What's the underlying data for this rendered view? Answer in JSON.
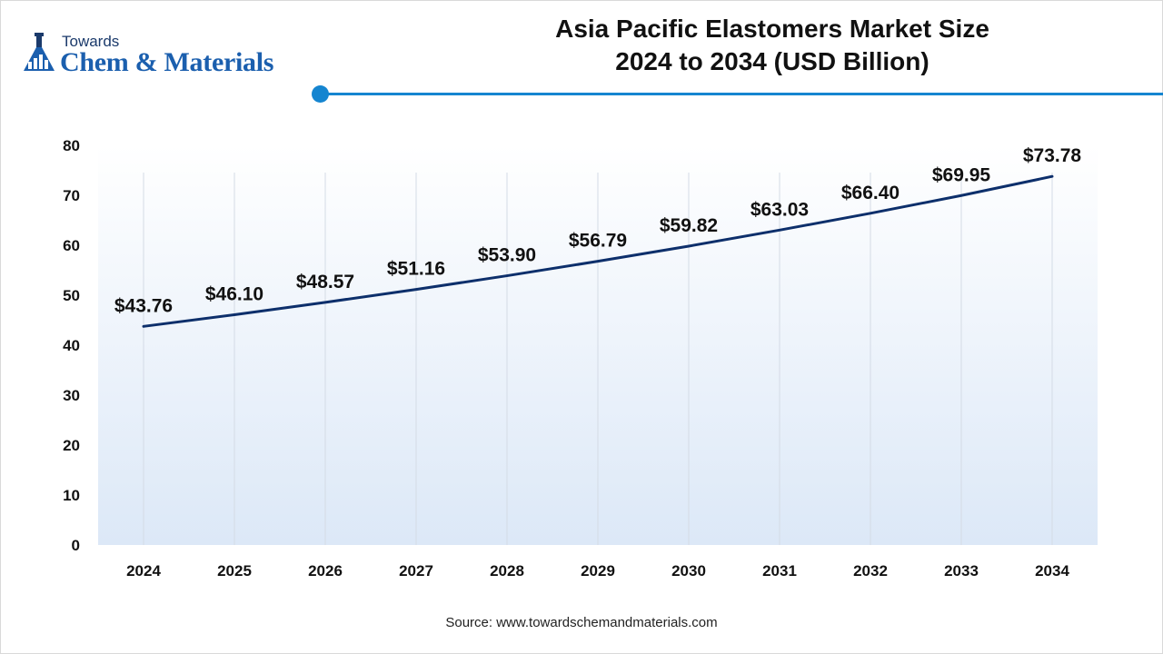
{
  "logo": {
    "line1": "Towards",
    "line2": "Chem & Materials",
    "icon": "flask-icon"
  },
  "title_line1": "Asia Pacific Elastomers Market Size",
  "title_line2": "2024 to 2034 (USD Billion)",
  "source": "Source: www.towardschemandmaterials.com",
  "colors": {
    "line": "#0d2f6b",
    "accent": "#1585d0",
    "area_top": "#ffffff",
    "area_bottom": "#dce8f7"
  },
  "chart_data": {
    "type": "line",
    "title": "Asia Pacific Elastomers Market Size 2024 to 2034 (USD Billion)",
    "x": [
      "2024",
      "2025",
      "2026",
      "2027",
      "2028",
      "2029",
      "2030",
      "2031",
      "2032",
      "2033",
      "2034"
    ],
    "values": [
      43.76,
      46.1,
      48.57,
      51.16,
      53.9,
      56.79,
      59.82,
      63.03,
      66.4,
      69.95,
      73.78
    ],
    "data_labels": [
      "$43.76",
      "$46.10",
      "$48.57",
      "$51.16",
      "$53.90",
      "$56.79",
      "$59.82",
      "$63.03",
      "$66.40",
      "$69.95",
      "$73.78"
    ],
    "y_ticks": [
      0,
      10,
      20,
      30,
      40,
      50,
      60,
      70,
      80
    ],
    "ylim": [
      0,
      80
    ],
    "xlabel": "",
    "ylabel": "",
    "grid": "vertical",
    "legend": "none"
  }
}
